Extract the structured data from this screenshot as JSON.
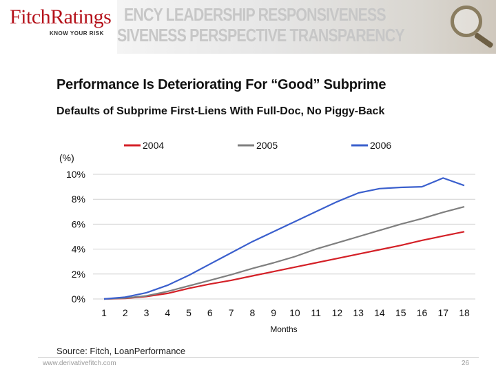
{
  "header": {
    "brand_name": "FitchRatings",
    "tagline": "KNOW YOUR RISK",
    "banner_line1": "ENCY LEADERSHIP RESPONSIVENESS",
    "banner_line2": "SIVENESS PERSPECTIVE TRANSPARENCY"
  },
  "slide": {
    "title": "Performance Is Deteriorating For “Good” Subprime",
    "source": "Source: Fitch, LoanPerformance",
    "footer_url": "www.derivativefitch.com",
    "page_number": "26"
  },
  "chart_data": {
    "type": "line",
    "title": "Defaults of Subprime First-Liens With Full-Doc, No Piggy-Back",
    "xlabel": "Months",
    "ylabel": "(%)",
    "x": [
      1,
      2,
      3,
      4,
      5,
      6,
      7,
      8,
      9,
      10,
      11,
      12,
      13,
      14,
      15,
      16,
      17,
      18
    ],
    "ylim": [
      0,
      10
    ],
    "yticks": [
      "0%",
      "2%",
      "4%",
      "6%",
      "8%",
      "10%"
    ],
    "grid": true,
    "legend_position": "top",
    "series": [
      {
        "name": "2004",
        "color": "#d42027",
        "values": [
          0.0,
          0.05,
          0.2,
          0.45,
          0.85,
          1.2,
          1.5,
          1.85,
          2.2,
          2.55,
          2.9,
          3.25,
          3.6,
          3.95,
          4.3,
          4.7,
          5.05,
          5.4
        ]
      },
      {
        "name": "2005",
        "color": "#7f7f7f",
        "values": [
          0.0,
          0.08,
          0.25,
          0.6,
          1.05,
          1.5,
          1.95,
          2.45,
          2.9,
          3.4,
          4.0,
          4.5,
          5.0,
          5.5,
          6.0,
          6.45,
          6.95,
          7.4
        ]
      },
      {
        "name": "2006",
        "color": "#3a5fcd",
        "values": [
          0.0,
          0.15,
          0.5,
          1.1,
          1.9,
          2.8,
          3.7,
          4.6,
          5.4,
          6.2,
          7.0,
          7.8,
          8.5,
          8.85,
          8.95,
          9.0,
          9.7,
          9.1
        ]
      }
    ]
  }
}
